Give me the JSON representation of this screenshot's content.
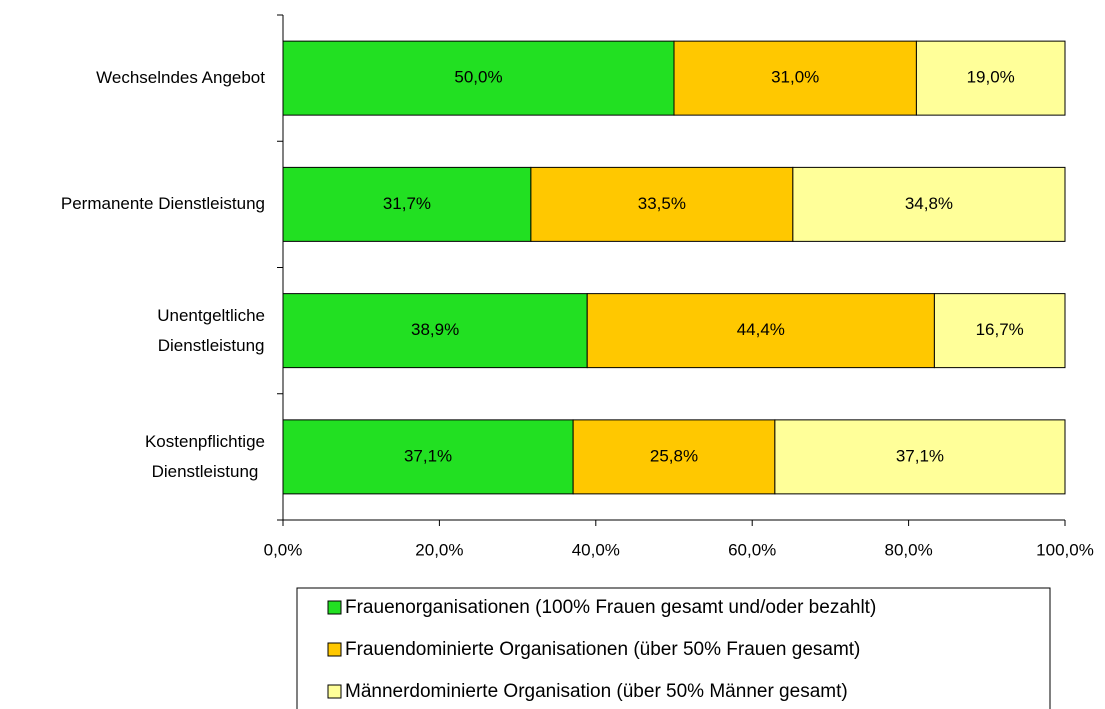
{
  "chart_data": {
    "type": "stacked_barh",
    "categories": [
      "Wechselndes Angebot",
      "Permanente Dienstleistung",
      "Unentgeltliche\nDienstleistung",
      "Kostenpflichtige\nDienstleistung"
    ],
    "series": [
      {
        "name": "Frauenorganisationen (100% Frauen gesamt und/oder bezahlt)",
        "color": "#22e022",
        "values": [
          50.0,
          31.7,
          38.9,
          37.1
        ],
        "value_labels": [
          "50,0%",
          "31,7%",
          "38,9%",
          "37,1%"
        ]
      },
      {
        "name": "Frauendominierte Organisationen (über 50% Frauen gesamt)",
        "color": "#ffc800",
        "values": [
          31.0,
          33.5,
          44.4,
          25.8
        ],
        "value_labels": [
          "31,0%",
          "33,5%",
          "44,4%",
          "25,8%"
        ]
      },
      {
        "name": "Männerdominierte Organisation (über 50% Männer gesamt)",
        "color": "#ffff99",
        "values": [
          19.0,
          34.8,
          16.7,
          37.1
        ],
        "value_labels": [
          "19,0%",
          "34,8%",
          "16,7%",
          "37,1%"
        ]
      }
    ],
    "xlim": [
      0,
      100
    ],
    "xticks": [
      {
        "value": 0,
        "label": "0,0%"
      },
      {
        "value": 20,
        "label": "20,0%"
      },
      {
        "value": 40,
        "label": "40,0%"
      },
      {
        "value": 60,
        "label": "60,0%"
      },
      {
        "value": 80,
        "label": "80,0%"
      },
      {
        "value": 100,
        "label": "100,0%"
      }
    ],
    "legend": "bottom"
  }
}
